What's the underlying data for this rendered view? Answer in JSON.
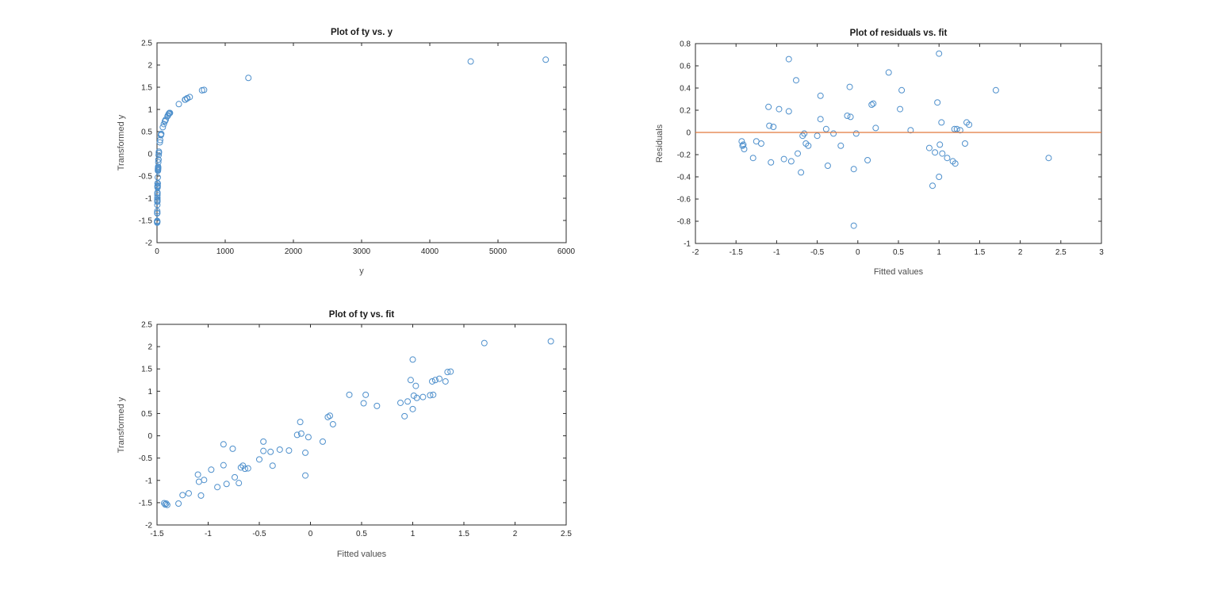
{
  "figure": {
    "background": "#ffffff"
  },
  "colors": {
    "marker": "#4f90cc",
    "zero_line": "#e2793c",
    "axis": "#2b2b2b",
    "tick_text": "#262626",
    "label_text": "#4d4d4d",
    "title_text": "#1a1a1a"
  },
  "chart_data": [
    {
      "id": "ty_vs_y",
      "type": "scatter",
      "title": "Plot of ty vs. y",
      "xlabel": "y",
      "ylabel": "Transformed y",
      "xlim": [
        0,
        6000
      ],
      "ylim": [
        -2,
        2.5
      ],
      "xticks": [
        0,
        1000,
        2000,
        3000,
        4000,
        5000,
        6000
      ],
      "yticks": [
        -2,
        -1.5,
        -1,
        -0.5,
        0,
        0.5,
        1,
        1.5,
        2,
        2.5
      ],
      "x_field": "y",
      "y_field": "ty",
      "marker": "open-circle",
      "grid": false,
      "legend": null,
      "zero_line": false
    },
    {
      "id": "resid_vs_fit",
      "type": "scatter",
      "title": "Plot of residuals vs. fit",
      "xlabel": "Fitted values",
      "ylabel": "Residuals",
      "xlim": [
        -2,
        3
      ],
      "ylim": [
        -1,
        0.8
      ],
      "xticks": [
        -2,
        -1.5,
        -1,
        -0.5,
        0,
        0.5,
        1,
        1.5,
        2,
        2.5,
        3
      ],
      "yticks": [
        -1,
        -0.8,
        -0.6,
        -0.4,
        -0.2,
        0,
        0.2,
        0.4,
        0.6,
        0.8
      ],
      "x_field": "fit",
      "y_field": "resid",
      "marker": "open-circle",
      "grid": false,
      "legend": null,
      "zero_line": true
    },
    {
      "id": "ty_vs_fit",
      "type": "scatter",
      "title": "Plot of ty vs. fit",
      "xlabel": "Fitted values",
      "ylabel": "Transformed y",
      "xlim": [
        -1.5,
        2.5
      ],
      "ylim": [
        -2,
        2.5
      ],
      "xticks": [
        -1.5,
        -1,
        -0.5,
        0,
        0.5,
        1,
        1.5,
        2,
        2.5
      ],
      "yticks": [
        -2,
        -1.5,
        -1,
        -0.5,
        0,
        0.5,
        1,
        1.5,
        2,
        2.5
      ],
      "x_field": "fit",
      "y_field": "ty",
      "marker": "open-circle",
      "grid": false,
      "legend": null,
      "zero_line": false
    }
  ],
  "n_points": 64,
  "points": [
    {
      "y": 2.95,
      "fit": -1.41,
      "ty": -1.52,
      "resid": -0.11
    },
    {
      "y": 2.85,
      "fit": -1.42,
      "ty": -1.54,
      "resid": -0.12
    },
    {
      "y": 3.0,
      "fit": -1.43,
      "ty": -1.51,
      "resid": -0.08
    },
    {
      "y": 2.8,
      "fit": -1.4,
      "ty": -1.55,
      "resid": -0.15
    },
    {
      "y": 2.9,
      "fit": -1.29,
      "ty": -1.52,
      "resid": -0.23
    },
    {
      "y": 3.7,
      "fit": -1.25,
      "ty": -1.33,
      "resid": -0.08
    },
    {
      "y": 3.9,
      "fit": -1.19,
      "ty": -1.29,
      "resid": -0.1
    },
    {
      "y": 3.65,
      "fit": -1.07,
      "ty": -1.34,
      "resid": -0.27
    },
    {
      "y": 7.0,
      "fit": -1.1,
      "ty": -0.87,
      "resid": 0.23
    },
    {
      "y": 5.6,
      "fit": -1.09,
      "ty": -1.03,
      "resid": 0.06
    },
    {
      "y": 5.9,
      "fit": -1.04,
      "ty": -0.99,
      "resid": 0.05
    },
    {
      "y": 8.2,
      "fit": -0.97,
      "ty": -0.76,
      "resid": 0.21
    },
    {
      "y": 4.7,
      "fit": -0.91,
      "ty": -1.15,
      "resid": -0.24
    },
    {
      "y": 19,
      "fit": -0.85,
      "ty": -0.19,
      "resid": 0.66
    },
    {
      "y": 9.5,
      "fit": -0.85,
      "ty": -0.66,
      "resid": 0.19
    },
    {
      "y": 5.2,
      "fit": -0.82,
      "ty": -1.08,
      "resid": -0.26
    },
    {
      "y": 16.5,
      "fit": -0.76,
      "ty": -0.29,
      "resid": 0.47
    },
    {
      "y": 6.4,
      "fit": -0.74,
      "ty": -0.93,
      "resid": -0.19
    },
    {
      "y": 5.4,
      "fit": -0.7,
      "ty": -1.06,
      "resid": -0.36
    },
    {
      "y": 8.8,
      "fit": -0.68,
      "ty": -0.71,
      "resid": -0.03
    },
    {
      "y": 9.3,
      "fit": -0.66,
      "ty": -0.67,
      "resid": -0.01
    },
    {
      "y": 8.4,
      "fit": -0.64,
      "ty": -0.74,
      "resid": -0.1
    },
    {
      "y": 8.5,
      "fit": -0.61,
      "ty": -0.73,
      "resid": -0.12
    },
    {
      "y": 11.5,
      "fit": -0.5,
      "ty": -0.53,
      "resid": -0.03
    },
    {
      "y": 21.5,
      "fit": -0.46,
      "ty": -0.13,
      "resid": 0.33
    },
    {
      "y": 15,
      "fit": -0.46,
      "ty": -0.34,
      "resid": 0.12
    },
    {
      "y": 14.5,
      "fit": -0.39,
      "ty": -0.36,
      "resid": 0.03
    },
    {
      "y": 9.3,
      "fit": -0.37,
      "ty": -0.67,
      "resid": -0.3
    },
    {
      "y": 16,
      "fit": -0.3,
      "ty": -0.31,
      "resid": -0.01
    },
    {
      "y": 15.5,
      "fit": -0.21,
      "ty": -0.33,
      "resid": -0.12
    },
    {
      "y": 46,
      "fit": -0.1,
      "ty": 0.31,
      "resid": 0.41
    },
    {
      "y": 27,
      "fit": -0.13,
      "ty": 0.02,
      "resid": 0.15
    },
    {
      "y": 28,
      "fit": -0.09,
      "ty": 0.05,
      "resid": 0.14
    },
    {
      "y": 14,
      "fit": -0.05,
      "ty": -0.38,
      "resid": -0.33
    },
    {
      "y": 6.8,
      "fit": -0.05,
      "ty": -0.89,
      "resid": -0.84
    },
    {
      "y": 24,
      "fit": -0.02,
      "ty": -0.03,
      "resid": -0.01
    },
    {
      "y": 21,
      "fit": 0.12,
      "ty": -0.13,
      "resid": -0.25
    },
    {
      "y": 57,
      "fit": 0.17,
      "ty": 0.42,
      "resid": 0.25
    },
    {
      "y": 62,
      "fit": 0.19,
      "ty": 0.45,
      "resid": 0.26
    },
    {
      "y": 42,
      "fit": 0.22,
      "ty": 0.26,
      "resid": 0.04
    },
    {
      "y": 190,
      "fit": 0.38,
      "ty": 0.92,
      "resid": 0.54
    },
    {
      "y": 115,
      "fit": 0.52,
      "ty": 0.73,
      "resid": 0.21
    },
    {
      "y": 186,
      "fit": 0.54,
      "ty": 0.92,
      "resid": 0.38
    },
    {
      "y": 100,
      "fit": 0.65,
      "ty": 0.67,
      "resid": 0.02
    },
    {
      "y": 118,
      "fit": 0.88,
      "ty": 0.74,
      "resid": -0.14
    },
    {
      "y": 60,
      "fit": 0.92,
      "ty": 0.44,
      "resid": -0.48
    },
    {
      "y": 128,
      "fit": 0.95,
      "ty": 0.77,
      "resid": -0.18
    },
    {
      "y": 445,
      "fit": 0.98,
      "ty": 1.25,
      "resid": 0.27
    },
    {
      "y": 1340,
      "fit": 1.0,
      "ty": 1.71,
      "resid": 0.71
    },
    {
      "y": 172,
      "fit": 1.01,
      "ty": 0.9,
      "resid": -0.11
    },
    {
      "y": 320,
      "fit": 1.03,
      "ty": 1.12,
      "resid": 0.09
    },
    {
      "y": 155,
      "fit": 1.04,
      "ty": 0.85,
      "resid": -0.19
    },
    {
      "y": 85,
      "fit": 1.0,
      "ty": 0.6,
      "resid": -0.4
    },
    {
      "y": 162,
      "fit": 1.1,
      "ty": 0.87,
      "resid": -0.23
    },
    {
      "y": 178,
      "fit": 1.17,
      "ty": 0.91,
      "resid": -0.26
    },
    {
      "y": 182,
      "fit": 1.2,
      "ty": 0.92,
      "resid": -0.28
    },
    {
      "y": 410,
      "fit": 1.19,
      "ty": 1.22,
      "resid": 0.03
    },
    {
      "y": 440,
      "fit": 1.22,
      "ty": 1.25,
      "resid": 0.03
    },
    {
      "y": 480,
      "fit": 1.26,
      "ty": 1.28,
      "resid": 0.02
    },
    {
      "y": 415,
      "fit": 1.32,
      "ty": 1.22,
      "resid": -0.1
    },
    {
      "y": 660,
      "fit": 1.34,
      "ty": 1.43,
      "resid": 0.09
    },
    {
      "y": 690,
      "fit": 1.37,
      "ty": 1.44,
      "resid": 0.07
    },
    {
      "y": 4600,
      "fit": 1.7,
      "ty": 2.08,
      "resid": 0.38
    },
    {
      "y": 5700,
      "fit": 2.35,
      "ty": 2.12,
      "resid": -0.23
    }
  ]
}
